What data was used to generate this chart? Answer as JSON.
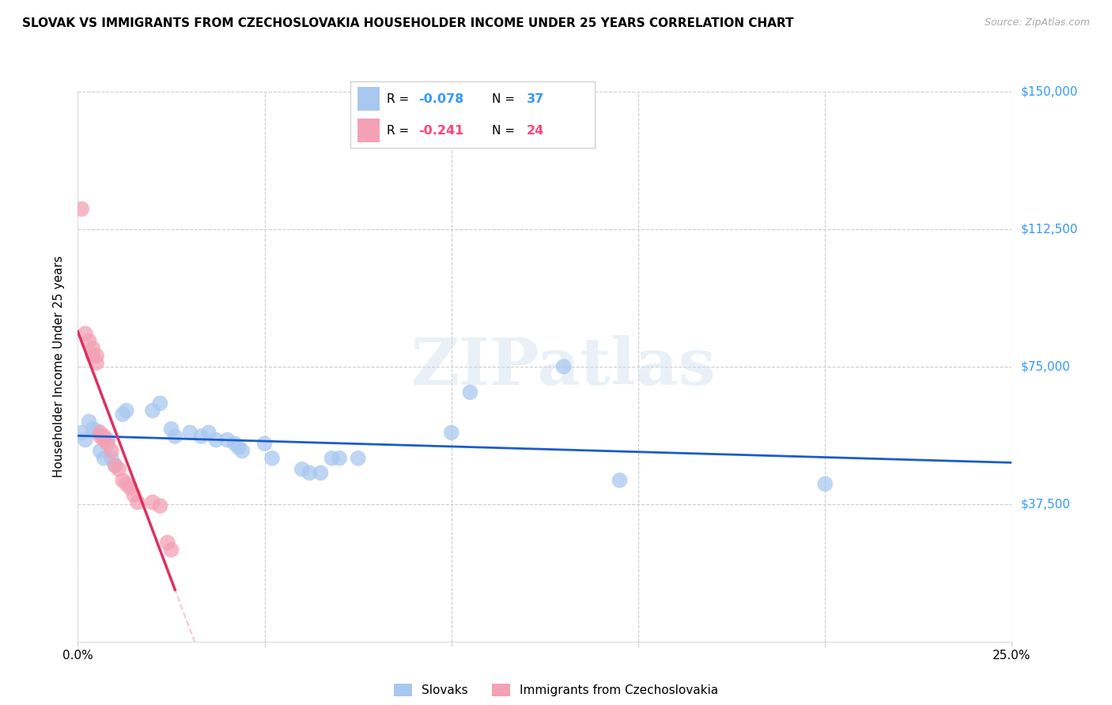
{
  "title": "SLOVAK VS IMMIGRANTS FROM CZECHOSLOVAKIA HOUSEHOLDER INCOME UNDER 25 YEARS CORRELATION CHART",
  "source": "Source: ZipAtlas.com",
  "ylabel": "Householder Income Under 25 years",
  "xlim": [
    0,
    0.25
  ],
  "ylim": [
    0,
    150000
  ],
  "yticks": [
    0,
    37500,
    75000,
    112500,
    150000
  ],
  "ytick_labels": [
    "",
    "$37,500",
    "$75,000",
    "$112,500",
    "$150,000"
  ],
  "xticks": [
    0.0,
    0.05,
    0.1,
    0.15,
    0.2,
    0.25
  ],
  "grid_color": "#cccccc",
  "background_color": "#ffffff",
  "color_blue": "#a8c8f0",
  "color_pink": "#f4a0b5",
  "trendline_blue": "#1a5ccc",
  "trendline_pink_solid": "#e03060",
  "trendline_pink_dash": "#f0b0c0",
  "slovak_points": [
    [
      0.001,
      57000
    ],
    [
      0.002,
      55000
    ],
    [
      0.003,
      60000
    ],
    [
      0.004,
      58000
    ],
    [
      0.005,
      57500
    ],
    [
      0.006,
      52000
    ],
    [
      0.007,
      50000
    ],
    [
      0.008,
      55000
    ],
    [
      0.009,
      50000
    ],
    [
      0.01,
      48000
    ],
    [
      0.012,
      62000
    ],
    [
      0.013,
      63000
    ],
    [
      0.02,
      63000
    ],
    [
      0.022,
      65000
    ],
    [
      0.025,
      58000
    ],
    [
      0.026,
      56000
    ],
    [
      0.03,
      57000
    ],
    [
      0.033,
      56000
    ],
    [
      0.035,
      57000
    ],
    [
      0.037,
      55000
    ],
    [
      0.04,
      55000
    ],
    [
      0.042,
      54000
    ],
    [
      0.043,
      53000
    ],
    [
      0.044,
      52000
    ],
    [
      0.05,
      54000
    ],
    [
      0.052,
      50000
    ],
    [
      0.06,
      47000
    ],
    [
      0.062,
      46000
    ],
    [
      0.065,
      46000
    ],
    [
      0.068,
      50000
    ],
    [
      0.07,
      50000
    ],
    [
      0.075,
      50000
    ],
    [
      0.1,
      57000
    ],
    [
      0.105,
      68000
    ],
    [
      0.13,
      75000
    ],
    [
      0.145,
      44000
    ],
    [
      0.2,
      43000
    ]
  ],
  "czecho_points": [
    [
      0.001,
      118000
    ],
    [
      0.002,
      84000
    ],
    [
      0.003,
      82000
    ],
    [
      0.004,
      80000
    ],
    [
      0.004,
      78000
    ],
    [
      0.005,
      78000
    ],
    [
      0.005,
      76000
    ],
    [
      0.006,
      57000
    ],
    [
      0.006,
      56000
    ],
    [
      0.007,
      56000
    ],
    [
      0.007,
      55000
    ],
    [
      0.008,
      54000
    ],
    [
      0.009,
      52000
    ],
    [
      0.01,
      48000
    ],
    [
      0.011,
      47000
    ],
    [
      0.012,
      44000
    ],
    [
      0.013,
      43000
    ],
    [
      0.014,
      42000
    ],
    [
      0.015,
      40000
    ],
    [
      0.016,
      38000
    ],
    [
      0.02,
      38000
    ],
    [
      0.022,
      37000
    ],
    [
      0.024,
      27000
    ],
    [
      0.025,
      25000
    ]
  ],
  "watermark": "ZIPatlas"
}
